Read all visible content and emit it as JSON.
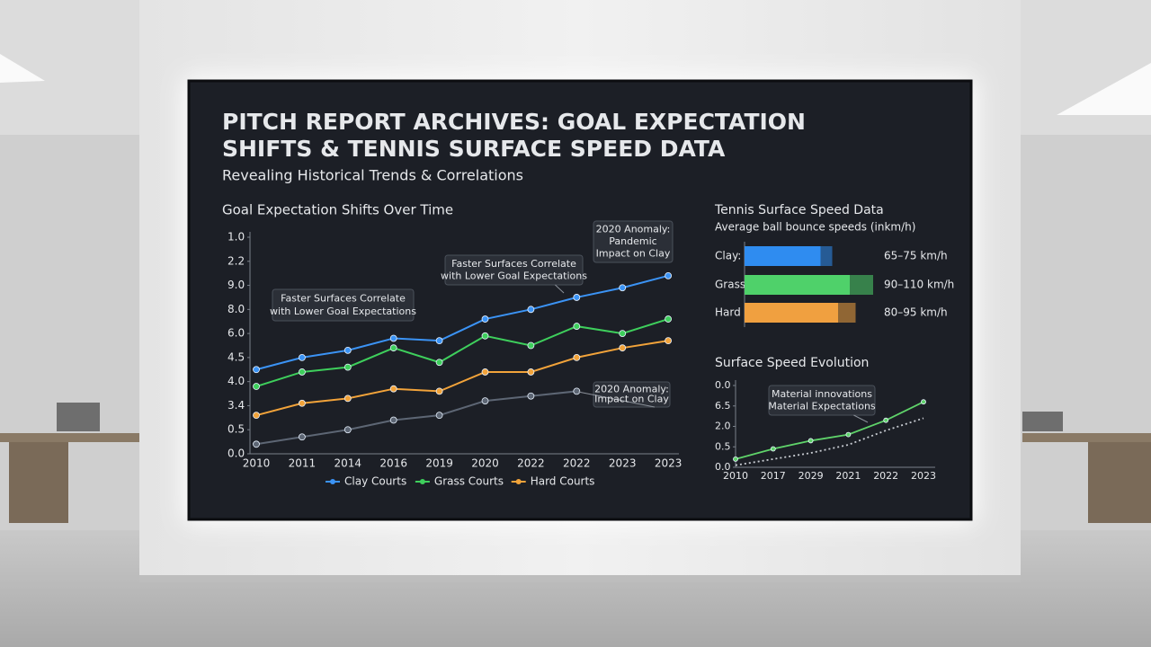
{
  "header": {
    "title": [
      "PITCH REPORT ARCHIVES: GOAL EXPECTATION",
      "SHIFTS & TENNIS SURFACE SPEED DATA"
    ],
    "subtitle": "Revealing Historical Trends & Correlations"
  },
  "chart_data": [
    {
      "type": "line",
      "title": "Goal Expectation Shifts Over Time",
      "categories": [
        "2010",
        "2011",
        "2014",
        "2016",
        "2019",
        "2020",
        "2022",
        "2022",
        "2023",
        "2023"
      ],
      "ylim": [
        0,
        9
      ],
      "yticks": [
        {
          "value": 0,
          "label": "0.0"
        },
        {
          "value": 1,
          "label": "0.5"
        },
        {
          "value": 2,
          "label": "3.4"
        },
        {
          "value": 3,
          "label": "4.0"
        },
        {
          "value": 4,
          "label": "4.5"
        },
        {
          "value": 5,
          "label": "6.0"
        },
        {
          "value": 6,
          "label": "8.0"
        },
        {
          "value": 7,
          "label": "9.0"
        },
        {
          "value": 8,
          "label": "2.2"
        },
        {
          "value": 9,
          "label": "1.0"
        }
      ],
      "series": [
        {
          "name": "Clay Courts",
          "color": "#3b93f5",
          "values": [
            3.5,
            4.0,
            4.3,
            4.8,
            4.7,
            5.6,
            6.0,
            6.5,
            6.9,
            7.4
          ]
        },
        {
          "name": "Grass Courts",
          "color": "#3ecf5c",
          "values": [
            2.8,
            3.4,
            3.6,
            4.4,
            3.8,
            4.9,
            4.5,
            5.3,
            5.0,
            5.6
          ]
        },
        {
          "name": "Hard Courts",
          "color": "#f2a33a",
          "values": [
            1.6,
            2.1,
            2.3,
            2.7,
            2.6,
            3.4,
            3.4,
            4.0,
            4.4,
            4.7
          ]
        },
        {
          "color": "#5d6674",
          "values": [
            0.4,
            0.7,
            1.0,
            1.4,
            1.6,
            2.2,
            2.4,
            2.6,
            null,
            null
          ]
        }
      ],
      "annotations": [
        [
          "Faster Surfaces Correlate",
          "with Lower Goal Expectations"
        ],
        [
          "Faster Surfaces Correlate",
          "with Lower Goal Expectations"
        ],
        [
          "2020 Anomaly:",
          "Pandemic",
          "Impact on Clay"
        ],
        [
          "2020 Anomaly:",
          "Impact on Clay"
        ]
      ],
      "legend": "bottom"
    },
    {
      "type": "bar",
      "orientation": "horizontal",
      "title": "Tennis Surface Speed Data",
      "subtitle": "Average ball bounce speeds (inkm/h)",
      "categories": [
        "Clay:",
        "Grass",
        "Hard"
      ],
      "low": [
        65,
        90,
        80
      ],
      "high": [
        75,
        110,
        95
      ],
      "value_labels": [
        "65–75 km/h",
        "90–110 km/h",
        "80–95 km/h"
      ],
      "colors": [
        "#2f8cf0",
        "#4fd16a",
        "#f0a040"
      ]
    },
    {
      "type": "line",
      "title": "Surface Speed Evolution",
      "categories": [
        "2010",
        "2017",
        "2029",
        "2021",
        "2022",
        "2023"
      ],
      "ylim": [
        0,
        4
      ],
      "yticks": [
        {
          "value": 0,
          "label": "0.0"
        },
        {
          "value": 1,
          "label": "0.5"
        },
        {
          "value": 2,
          "label": "2.0"
        },
        {
          "value": 3,
          "label": "6.5"
        },
        {
          "value": 4,
          "label": "0.0"
        }
      ],
      "series": [
        {
          "color": "#5fd36a",
          "values": [
            0.4,
            0.9,
            1.3,
            1.6,
            2.3,
            3.2
          ]
        },
        {
          "color": "#c8ccd2",
          "line_style": "dotted",
          "values": [
            0.1,
            0.4,
            0.7,
            1.1,
            1.8,
            2.4
          ]
        }
      ],
      "annotations": [
        [
          "Material innovations",
          "Material Expectations"
        ]
      ]
    }
  ]
}
